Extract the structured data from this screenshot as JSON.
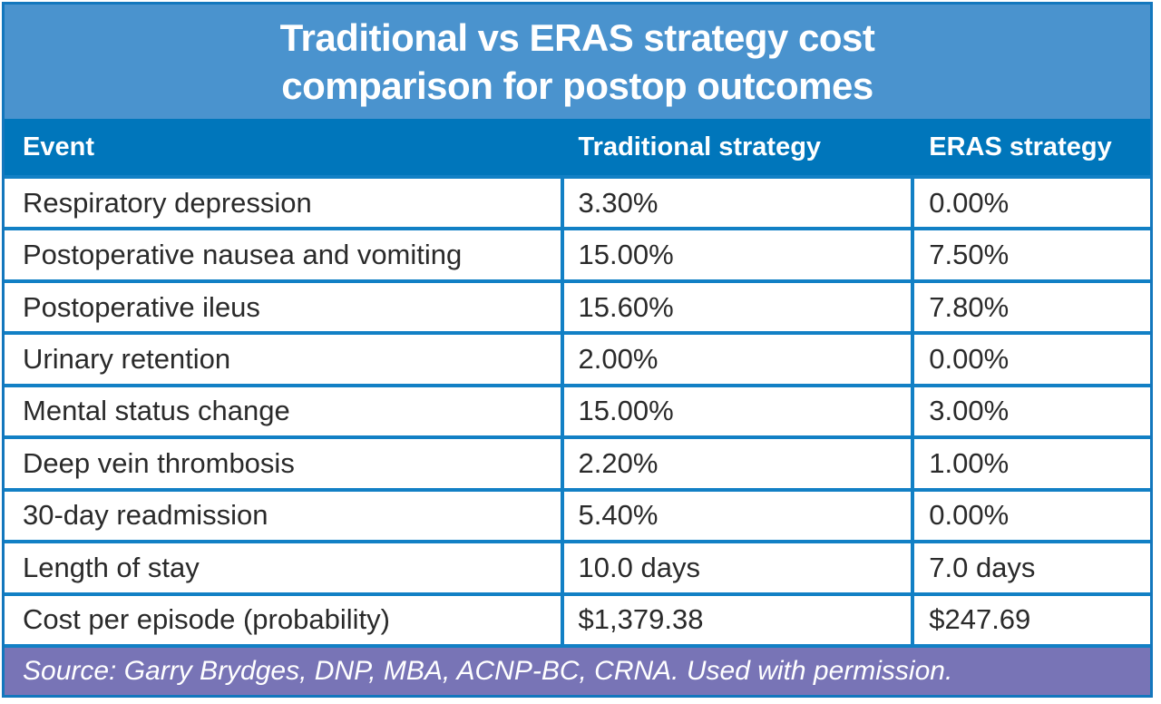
{
  "title": {
    "line1": "Traditional vs ERAS strategy cost",
    "line2": "comparison for postop outcomes"
  },
  "chart_data": {
    "type": "table",
    "title": "Traditional vs ERAS strategy cost comparison for postop outcomes",
    "columns": [
      "Event",
      "Traditional strategy",
      "ERAS strategy"
    ],
    "rows": [
      {
        "event": "Respiratory depression",
        "traditional": "3.30%",
        "eras": "0.00%"
      },
      {
        "event": "Postoperative nausea and vomiting",
        "traditional": "15.00%",
        "eras": "7.50%"
      },
      {
        "event": "Postoperative ileus",
        "traditional": "15.60%",
        "eras": "7.80%"
      },
      {
        "event": "Urinary retention",
        "traditional": "2.00%",
        "eras": "0.00%"
      },
      {
        "event": "Mental status change",
        "traditional": "15.00%",
        "eras": "3.00%"
      },
      {
        "event": "Deep vein thrombosis",
        "traditional": "2.20%",
        "eras": "1.00%"
      },
      {
        "event": "30-day readmission",
        "traditional": "5.40%",
        "eras": "0.00%"
      },
      {
        "event": "Length of stay",
        "traditional": "10.0 days",
        "eras": "7.0 days"
      },
      {
        "event": "Cost per episode (probability)",
        "traditional": "$1,379.38",
        "eras": "$247.69"
      }
    ],
    "source_note": "Source: Garry Brydges, DNP, MBA, ACNP-BC, CRNA. Used with permission."
  },
  "colors": {
    "title_bg": "#4a93ce",
    "header_bg": "#0076bb",
    "grid_blue": "#1280c5",
    "outer_border_blue": "#1377bd",
    "footer_purple": "#7874b6",
    "cell_bg": "#ffffff",
    "text_dark": "#2a2a2a",
    "text_white": "#ffffff"
  }
}
